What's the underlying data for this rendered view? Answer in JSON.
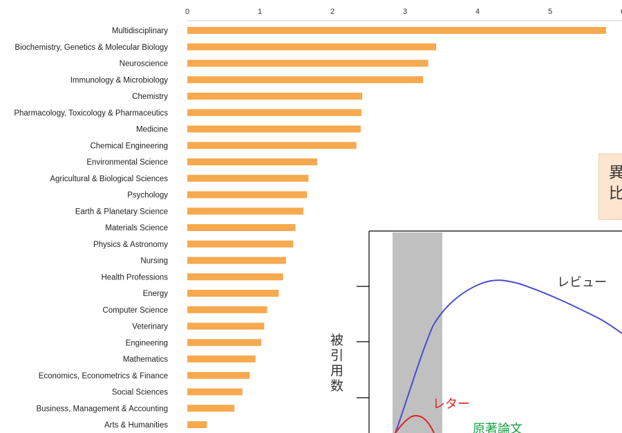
{
  "chart_data": [
    {
      "type": "bar",
      "orientation": "horizontal",
      "categories": [
        "Multidisciplinary",
        "Biochemistry, Genetics & Molecular Biology",
        "Neuroscience",
        "Immunology & Microbiology",
        "Chemistry",
        "Pharmacology, Toxicology & Pharmaceutics",
        "Medicine",
        "Chemical Engineering",
        "Environmental Science",
        "Agricultural & Biological Sciences",
        "Psychology",
        "Earth & Planetary Science",
        "Materials Science",
        "Physics & Astronomy",
        "Nursing",
        "Health Professions",
        "Energy",
        "Computer Science",
        "Veterinary",
        "Engineering",
        "Mathematics",
        "Economics, Econometrics & Finance",
        "Social Sciences",
        "Business, Management & Accounting",
        "Arts & Humanities"
      ],
      "values": [
        5.77,
        3.43,
        3.32,
        3.25,
        2.41,
        2.4,
        2.39,
        2.33,
        1.79,
        1.67,
        1.65,
        1.6,
        1.49,
        1.46,
        1.36,
        1.32,
        1.26,
        1.1,
        1.06,
        1.02,
        0.94,
        0.86,
        0.76,
        0.65,
        0.27
      ],
      "xticks": [
        "0",
        "1",
        "2",
        "3",
        "4",
        "5",
        "6"
      ],
      "xlim": [
        0,
        6
      ],
      "color": "#f7a94f"
    },
    {
      "type": "line",
      "ylabel": "被引用数",
      "series": [
        {
          "name": "レビュー",
          "color": "#4a4ad0"
        },
        {
          "name": "レター",
          "color": "#e02020"
        },
        {
          "name": "原著論文",
          "color": "#1aa04a"
        }
      ],
      "shaded_region_color": "#c0c0c0"
    }
  ],
  "callout": {
    "line1": "異",
    "line2": "比"
  }
}
